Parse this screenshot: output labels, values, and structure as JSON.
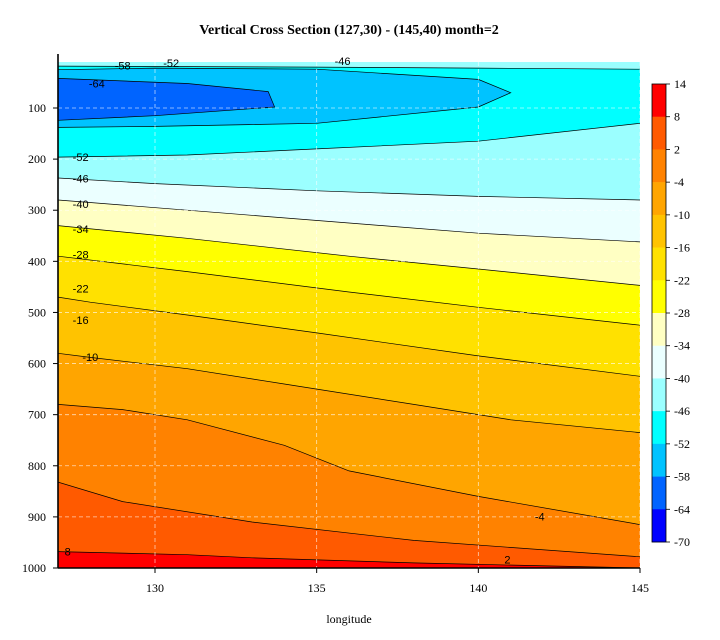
{
  "chart_data": {
    "type": "filled-contour",
    "title": "Vertical Cross Section (127,30) - (145,40) month=2",
    "xlabel": "longitude",
    "ylabel": "",
    "xlim": [
      127,
      145
    ],
    "ylim": [
      1000,
      10
    ],
    "x_ticks": [
      130,
      135,
      140,
      145
    ],
    "y_ticks": [
      100,
      200,
      300,
      400,
      500,
      600,
      700,
      800,
      900,
      1000
    ],
    "grid": true,
    "levels": [
      -70,
      -64,
      -58,
      -52,
      -46,
      -40,
      -34,
      -28,
      -22,
      -16,
      -10,
      -4,
      2,
      8,
      14
    ],
    "colors": [
      "#0000ff",
      "#0064ff",
      "#00c3ff",
      "#00ffff",
      "#9bffff",
      "#ebffff",
      "#ffffc3",
      "#ffff00",
      "#ffe100",
      "#ffc300",
      "#ffa500",
      "#ff8200",
      "#ff5a00",
      "#ff0000"
    ],
    "colorbar": {
      "position": "right",
      "labels": [
        "14",
        "8",
        "2",
        "-4",
        "-10",
        "-16",
        "-22",
        "-28",
        "-34",
        "-40",
        "-46",
        "-52",
        "-58",
        "-64",
        "-70"
      ]
    },
    "contours": [
      {
        "level": 2,
        "label": "2",
        "points": [
          [
            127,
            968
          ],
          [
            131,
            974
          ],
          [
            133,
            980
          ],
          [
            138,
            990
          ],
          [
            145,
            1000
          ]
        ]
      },
      {
        "level": -4,
        "label": "-4",
        "points": [
          [
            127,
            832
          ],
          [
            129,
            870
          ],
          [
            133,
            910
          ],
          [
            138,
            946
          ],
          [
            145,
            978
          ]
        ]
      },
      {
        "level": -10,
        "label": "-10",
        "points": [
          [
            127,
            680
          ],
          [
            129,
            690
          ],
          [
            131,
            710
          ],
          [
            134,
            760
          ],
          [
            136,
            810
          ],
          [
            140,
            860
          ],
          [
            145,
            915
          ]
        ]
      },
      {
        "level": -16,
        "label": "-16",
        "points": [
          [
            127,
            580
          ],
          [
            128,
            588
          ],
          [
            131,
            610
          ],
          [
            134,
            640
          ],
          [
            138,
            680
          ],
          [
            141,
            710
          ],
          [
            145,
            735
          ]
        ]
      },
      {
        "level": -22,
        "label": "-22",
        "points": [
          [
            127,
            470
          ],
          [
            128,
            480
          ],
          [
            131,
            505
          ],
          [
            135,
            540
          ],
          [
            140,
            585
          ],
          [
            145,
            625
          ]
        ]
      },
      {
        "level": -28,
        "label": "-28",
        "points": [
          [
            127,
            390
          ],
          [
            131,
            420
          ],
          [
            136,
            460
          ],
          [
            140,
            490
          ],
          [
            145,
            525
          ]
        ]
      },
      {
        "level": -34,
        "label": "-34",
        "points": [
          [
            127,
            330
          ],
          [
            131,
            355
          ],
          [
            136,
            390
          ],
          [
            140,
            415
          ],
          [
            145,
            447
          ]
        ]
      },
      {
        "level": -40,
        "label": "-40",
        "points": [
          [
            127,
            280
          ],
          [
            131,
            300
          ],
          [
            136,
            325
          ],
          [
            140,
            345
          ],
          [
            145,
            362
          ]
        ]
      },
      {
        "level": -46,
        "label": "-46",
        "points": [
          [
            127,
            237
          ],
          [
            130,
            248
          ],
          [
            135,
            262
          ],
          [
            140,
            273
          ],
          [
            145,
            280
          ]
        ]
      },
      {
        "level": -52,
        "label": "-52",
        "points": [
          [
            127,
            196
          ],
          [
            131,
            192
          ],
          [
            135,
            180
          ],
          [
            140,
            165
          ],
          [
            145,
            130
          ]
        ]
      },
      {
        "level": -58,
        "label": "-58",
        "points": [
          [
            127,
            25
          ],
          [
            130,
            22
          ],
          [
            135,
            24
          ],
          [
            140,
            44
          ],
          [
            141,
            70
          ],
          [
            140,
            98
          ],
          [
            135,
            130
          ],
          [
            130,
            136
          ],
          [
            127,
            138
          ]
        ]
      },
      {
        "level": -64,
        "label": "-64",
        "points": [
          [
            127,
            42
          ],
          [
            131,
            52
          ],
          [
            133.5,
            68
          ],
          [
            133.7,
            98
          ],
          [
            130,
            115
          ],
          [
            127,
            124
          ]
        ]
      },
      {
        "level": -52,
        "label": "-52",
        "points": [
          [
            127,
            18
          ],
          [
            135,
            20
          ],
          [
            140,
            22
          ],
          [
            145,
            24
          ]
        ]
      }
    ],
    "contour_labels": [
      {
        "text": "-52",
        "x": 130.5,
        "y": 12
      },
      {
        "text": "-58",
        "x": 129.0,
        "y": 17
      },
      {
        "text": "-64",
        "x": 128.2,
        "y": 52
      },
      {
        "text": "-46",
        "x": 135.8,
        "y": 8
      },
      {
        "text": "-52",
        "x": 127.7,
        "y": 196
      },
      {
        "text": "-46",
        "x": 127.7,
        "y": 238
      },
      {
        "text": "-40",
        "x": 127.7,
        "y": 288
      },
      {
        "text": "-34",
        "x": 127.7,
        "y": 337
      },
      {
        "text": "-28",
        "x": 127.7,
        "y": 387
      },
      {
        "text": "-22",
        "x": 127.7,
        "y": 453
      },
      {
        "text": "-16",
        "x": 127.7,
        "y": 515
      },
      {
        "text": "-10",
        "x": 128.0,
        "y": 587
      },
      {
        "text": "8",
        "x": 127.3,
        "y": 968
      },
      {
        "text": "-4",
        "x": 141.9,
        "y": 899
      },
      {
        "text": "2",
        "x": 140.9,
        "y": 983
      }
    ]
  }
}
